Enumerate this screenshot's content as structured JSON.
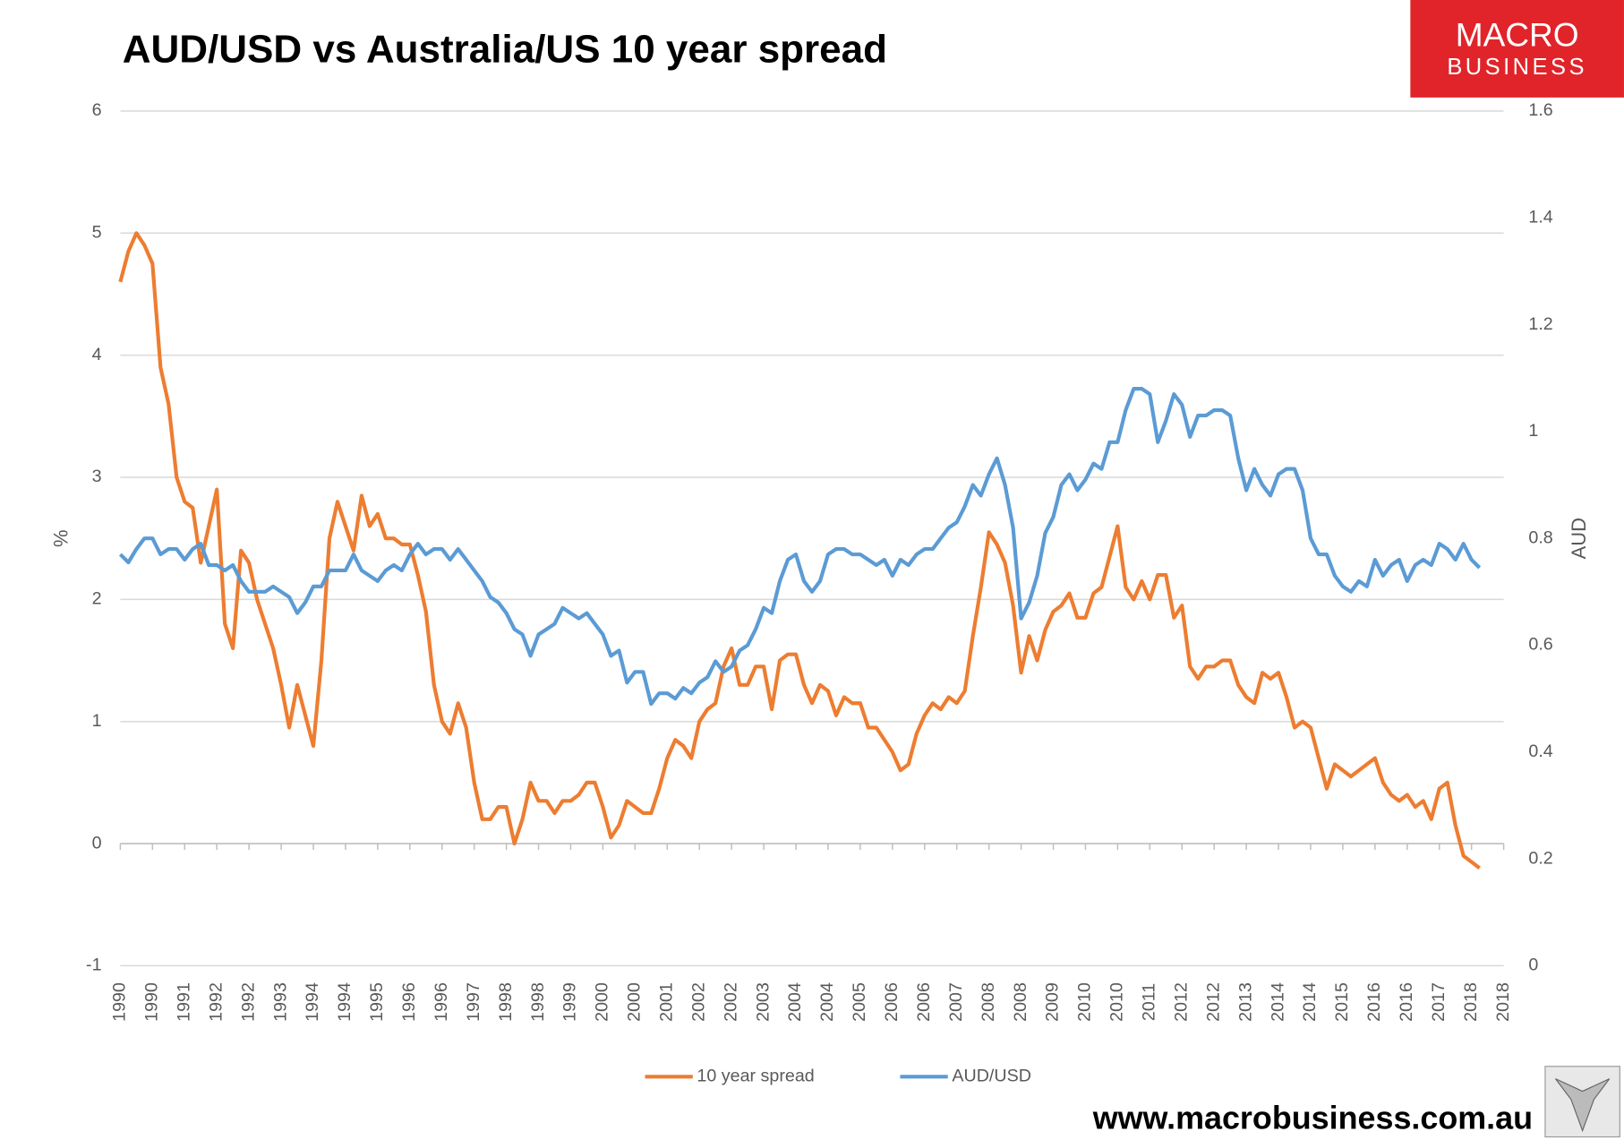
{
  "chart_data": {
    "type": "line",
    "title": "AUD/USD vs Australia/US 10 year spread",
    "y_label": "%",
    "y2_label": "AUD",
    "categories": [
      "1990",
      null,
      null,
      null,
      "1990",
      null,
      null,
      null,
      "1991",
      null,
      null,
      null,
      "1992",
      null,
      null,
      null,
      "1992",
      null,
      null,
      null,
      "1993",
      null,
      null,
      null,
      "1994",
      null,
      null,
      null,
      "1994",
      null,
      null,
      null,
      "1995",
      null,
      null,
      null,
      "1996",
      null,
      null,
      null,
      "1996",
      null,
      null,
      null,
      "1997",
      null,
      null,
      null,
      "1998",
      null,
      null,
      null,
      "1998",
      null,
      null,
      null,
      "1999",
      null,
      null,
      null,
      "2000",
      null,
      null,
      null,
      "2000",
      null,
      null,
      null,
      "2001",
      null,
      null,
      null,
      "2002",
      null,
      null,
      null,
      "2002",
      null,
      null,
      null,
      "2003",
      null,
      null,
      null,
      "2004",
      null,
      null,
      null,
      "2004",
      null,
      null,
      null,
      "2005",
      null,
      null,
      null,
      "2006",
      null,
      null,
      null,
      "2006",
      null,
      null,
      null,
      "2007",
      null,
      null,
      null,
      "2008",
      null,
      null,
      null,
      "2008",
      null,
      null,
      null,
      "2009",
      null,
      null,
      null,
      "2010",
      null,
      null,
      null,
      "2010",
      null,
      null,
      null,
      "2011",
      null,
      null,
      null,
      "2012",
      null,
      null,
      null,
      "2012",
      null,
      null,
      null,
      "2013",
      null,
      null,
      null,
      "2014",
      null,
      null,
      null,
      "2014",
      null,
      null,
      null,
      "2015",
      null,
      null,
      null,
      "2016",
      null,
      null,
      null,
      "2016",
      null,
      null,
      null,
      "2017",
      null,
      null,
      null,
      "2018",
      null,
      null,
      null,
      "2018"
    ],
    "series": [
      {
        "name": "10 year spread",
        "color": "#ED7D31",
        "values": [
          4.6,
          4.85,
          5.0,
          4.9,
          4.75,
          3.9,
          3.6,
          3.0,
          2.8,
          2.75,
          2.3,
          2.6,
          2.9,
          1.8,
          1.6,
          2.4,
          2.3,
          2.0,
          1.8,
          1.6,
          1.3,
          0.95,
          1.3,
          1.05,
          0.8,
          1.5,
          2.5,
          2.8,
          2.6,
          2.4,
          2.85,
          2.6,
          2.7,
          2.5,
          2.5,
          2.45,
          2.45,
          2.2,
          1.9,
          1.3,
          1.0,
          0.9,
          1.15,
          0.95,
          0.5,
          0.2,
          0.2,
          0.3,
          0.3,
          0.0,
          0.2,
          0.5,
          0.35,
          0.35,
          0.25,
          0.35,
          0.35,
          0.4,
          0.5,
          0.5,
          0.3,
          0.05,
          0.15,
          0.35,
          0.3,
          0.25,
          0.25,
          0.45,
          0.7,
          0.85,
          0.8,
          0.7,
          1.0,
          1.1,
          1.15,
          1.45,
          1.6,
          1.3,
          1.3,
          1.45,
          1.45,
          1.1,
          1.5,
          1.55,
          1.55,
          1.3,
          1.15,
          1.3,
          1.25,
          1.05,
          1.2,
          1.15,
          1.15,
          0.95,
          0.95,
          0.85,
          0.75,
          0.6,
          0.65,
          0.9,
          1.05,
          1.15,
          1.1,
          1.2,
          1.15,
          1.25,
          1.7,
          2.1,
          2.55,
          2.45,
          2.3,
          1.95,
          1.4,
          1.7,
          1.5,
          1.75,
          1.9,
          1.95,
          2.05,
          1.85,
          1.85,
          2.05,
          2.1,
          2.35,
          2.6,
          2.1,
          2.0,
          2.15,
          2.0,
          2.2,
          2.2,
          1.85,
          1.95,
          1.45,
          1.35,
          1.45,
          1.45,
          1.5,
          1.5,
          1.3,
          1.2,
          1.15,
          1.4,
          1.35,
          1.4,
          1.2,
          0.95,
          1.0,
          0.95,
          0.7,
          0.45,
          0.65,
          0.6,
          0.55,
          0.6,
          0.65,
          0.7,
          0.5,
          0.4,
          0.35,
          0.4,
          0.3,
          0.35,
          0.2,
          0.45,
          0.5,
          0.15,
          -0.1,
          -0.15,
          -0.2,
          null,
          null,
          null
        ]
      },
      {
        "name": "AUD/USD",
        "color": "#5B9BD5",
        "axis": "y2",
        "values": [
          0.77,
          0.755,
          0.78,
          0.8,
          0.8,
          0.77,
          0.78,
          0.78,
          0.76,
          0.78,
          0.79,
          0.75,
          0.75,
          0.74,
          0.75,
          0.72,
          0.7,
          0.7,
          0.7,
          0.71,
          0.7,
          0.69,
          0.66,
          0.68,
          0.71,
          0.71,
          0.74,
          0.74,
          0.74,
          0.77,
          0.74,
          0.73,
          0.72,
          0.74,
          0.75,
          0.74,
          0.77,
          0.79,
          0.77,
          0.78,
          0.78,
          0.76,
          0.78,
          0.76,
          0.74,
          0.72,
          0.69,
          0.68,
          0.66,
          0.63,
          0.62,
          0.58,
          0.62,
          0.63,
          0.64,
          0.67,
          0.66,
          0.65,
          0.66,
          0.64,
          0.62,
          0.58,
          0.59,
          0.53,
          0.55,
          0.55,
          0.49,
          0.51,
          0.51,
          0.5,
          0.52,
          0.51,
          0.53,
          0.54,
          0.57,
          0.55,
          0.56,
          0.59,
          0.6,
          0.63,
          0.67,
          0.66,
          0.72,
          0.76,
          0.77,
          0.72,
          0.7,
          0.72,
          0.77,
          0.78,
          0.78,
          0.77,
          0.77,
          0.76,
          0.75,
          0.76,
          0.73,
          0.76,
          0.75,
          0.77,
          0.78,
          0.78,
          0.8,
          0.82,
          0.83,
          0.86,
          0.9,
          0.88,
          0.92,
          0.95,
          0.9,
          0.82,
          0.65,
          0.68,
          0.73,
          0.81,
          0.84,
          0.9,
          0.92,
          0.89,
          0.91,
          0.94,
          0.93,
          0.98,
          0.98,
          1.04,
          1.08,
          1.08,
          1.07,
          0.98,
          1.02,
          1.07,
          1.05,
          0.99,
          1.03,
          1.03,
          1.04,
          1.04,
          1.03,
          0.95,
          0.89,
          0.93,
          0.9,
          0.88,
          0.92,
          0.93,
          0.93,
          0.89,
          0.8,
          0.77,
          0.77,
          0.73,
          0.71,
          0.7,
          0.72,
          0.71,
          0.76,
          0.73,
          0.75,
          0.76,
          0.72,
          0.75,
          0.76,
          0.75,
          0.79,
          0.78,
          0.76,
          0.79,
          0.76,
          0.745,
          null,
          null,
          null
        ]
      }
    ],
    "ylim": [
      -1,
      6
    ],
    "yticks": [
      -1,
      0,
      1,
      2,
      3,
      4,
      5,
      6
    ],
    "y2lim": [
      0,
      1.6
    ],
    "y2ticks": [
      0,
      0.2,
      0.4,
      0.6,
      0.8,
      1,
      1.2,
      1.4,
      1.6
    ],
    "grid": true,
    "legend": "bottom"
  },
  "logo": {
    "line1": "MACRO",
    "line2": "BUSINESS"
  },
  "footer": "www.macrobusiness.com.au"
}
